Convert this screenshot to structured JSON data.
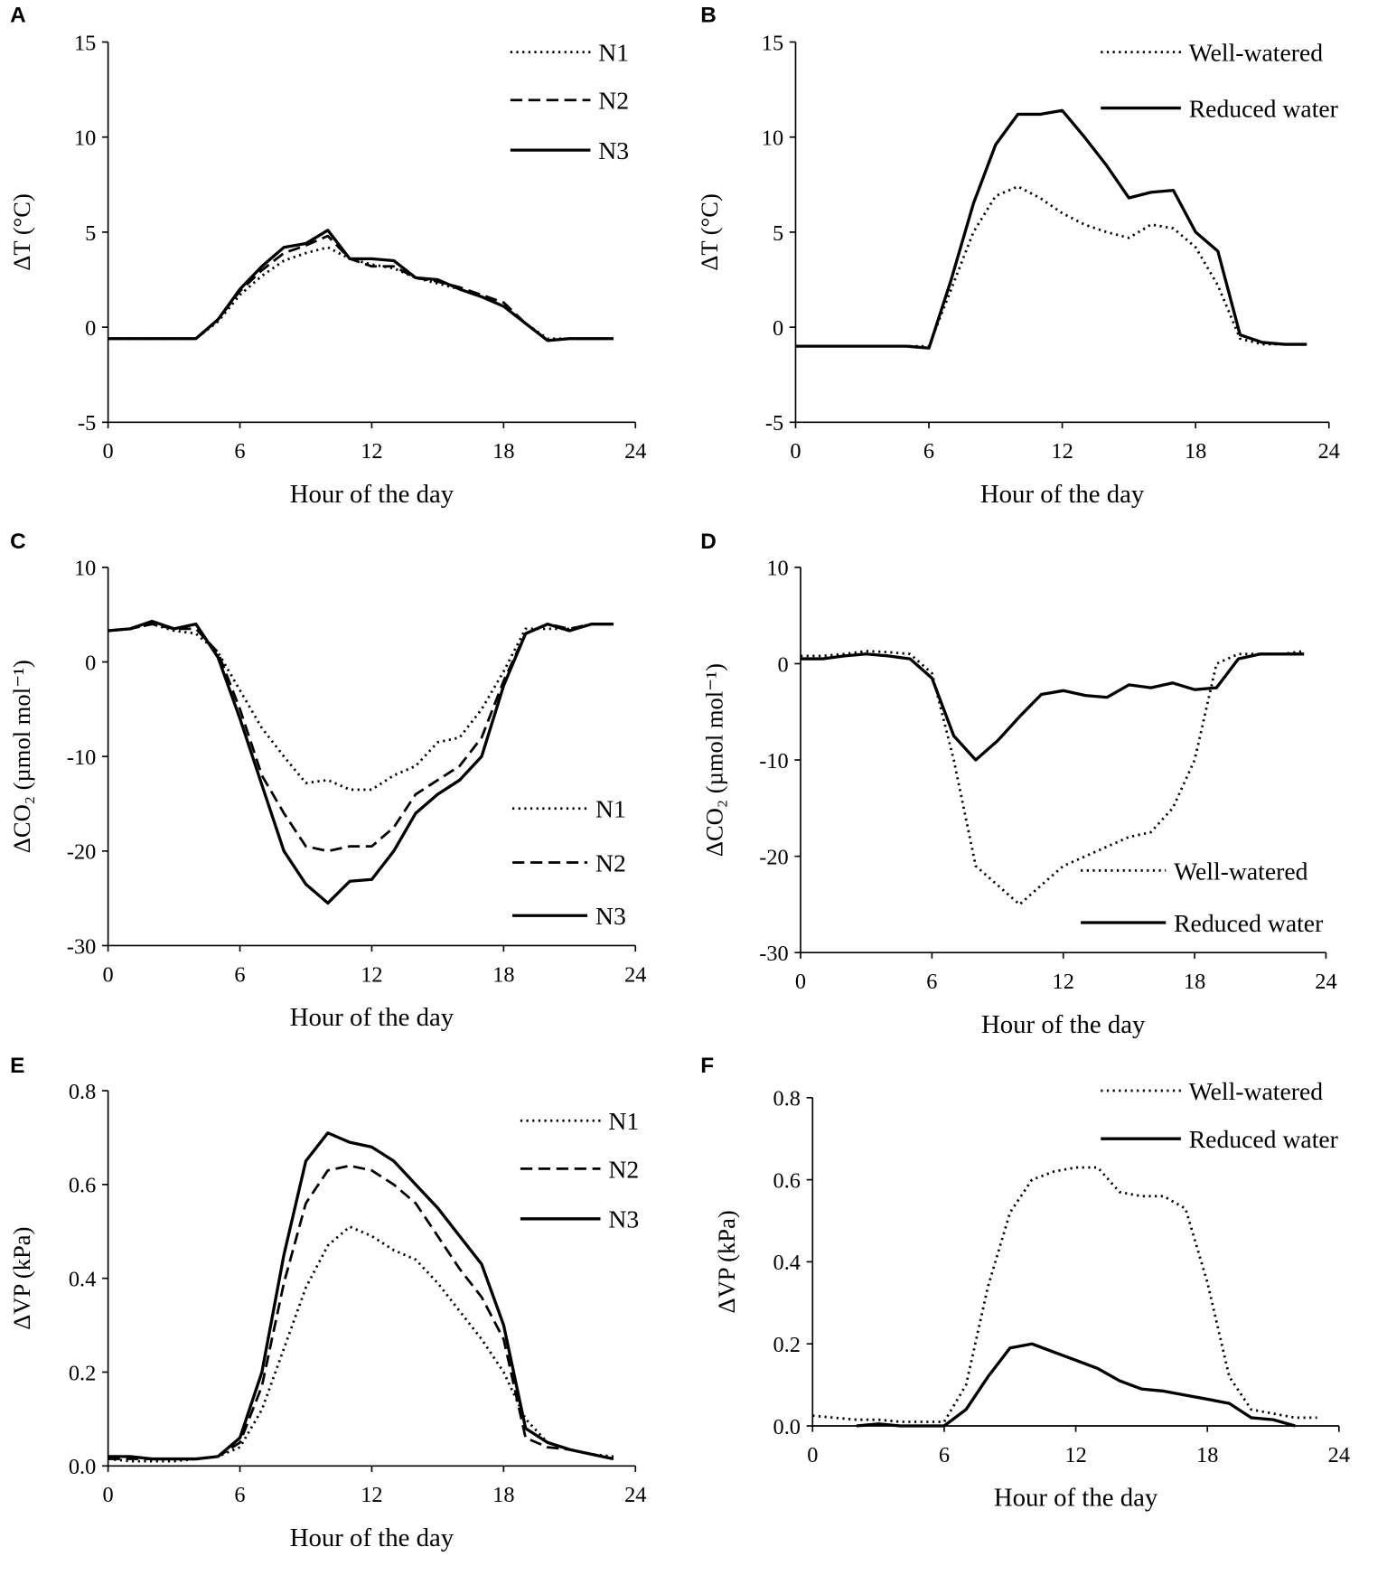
{
  "chart_data": [
    {
      "panel": "A",
      "type": "line",
      "xlabel": "Hour of the day",
      "ylabel": "ΔT (°C)",
      "xlim": [
        0,
        24
      ],
      "ylim": [
        -5,
        15
      ],
      "xticks": [
        "0",
        "6",
        "12",
        "18",
        "24"
      ],
      "yticks": [
        "-5",
        "0",
        "5",
        "10",
        "15"
      ],
      "legend_position": "top-right",
      "x": [
        0,
        1,
        2,
        3,
        4,
        5,
        6,
        7,
        8,
        9,
        10,
        11,
        12,
        13,
        14,
        15,
        16,
        17,
        18,
        19,
        20,
        21,
        22,
        23
      ],
      "series": [
        {
          "name": "N1",
          "style": "dotted",
          "values": [
            -0.6,
            -0.6,
            -0.6,
            -0.6,
            -0.6,
            0.3,
            1.7,
            2.7,
            3.5,
            3.9,
            4.2,
            3.6,
            3.3,
            3.1,
            2.6,
            2.3,
            2.0,
            1.6,
            1.1,
            0.2,
            -0.6,
            -0.6,
            -0.6,
            -0.6
          ]
        },
        {
          "name": "N2",
          "style": "dashed",
          "values": [
            -0.6,
            -0.6,
            -0.6,
            -0.6,
            -0.6,
            0.4,
            1.9,
            3.0,
            3.9,
            4.3,
            4.8,
            3.6,
            3.2,
            3.2,
            2.6,
            2.4,
            2.1,
            1.7,
            1.3,
            0.2,
            -0.7,
            -0.6,
            -0.6,
            -0.6
          ]
        },
        {
          "name": "N3",
          "style": "solid",
          "values": [
            -0.6,
            -0.6,
            -0.6,
            -0.6,
            -0.6,
            0.4,
            2.0,
            3.2,
            4.2,
            4.4,
            5.1,
            3.6,
            3.6,
            3.5,
            2.6,
            2.5,
            2.0,
            1.6,
            1.1,
            0.2,
            -0.7,
            -0.6,
            -0.6,
            -0.6
          ]
        }
      ]
    },
    {
      "panel": "B",
      "type": "line",
      "xlabel": "Hour of the day",
      "ylabel": "ΔT (°C)",
      "xlim": [
        0,
        24
      ],
      "ylim": [
        -5,
        15
      ],
      "xticks": [
        "0",
        "6",
        "12",
        "18",
        "24"
      ],
      "yticks": [
        "-5",
        "0",
        "5",
        "10",
        "15"
      ],
      "legend_position": "top-right",
      "x": [
        0,
        1,
        2,
        3,
        4,
        5,
        6,
        7,
        8,
        9,
        10,
        11,
        12,
        13,
        14,
        15,
        16,
        17,
        18,
        19,
        20,
        21,
        22,
        23
      ],
      "series": [
        {
          "name": "Well-watered",
          "style": "dotted",
          "values": [
            -1,
            -1,
            -1,
            -1,
            -1,
            -1,
            -1,
            2,
            5,
            6.9,
            7.4,
            6.8,
            6,
            5.4,
            5,
            4.7,
            5.4,
            5.2,
            4.2,
            2.2,
            -0.6,
            -0.9,
            -0.9,
            -0.9
          ]
        },
        {
          "name": "Reduced water",
          "style": "solid",
          "values": [
            -1,
            -1,
            -1,
            -1,
            -1,
            -1,
            -1.1,
            2.5,
            6.5,
            9.6,
            11.2,
            11.2,
            11.4,
            10,
            8.5,
            6.8,
            7.1,
            7.2,
            5,
            4,
            -0.4,
            -0.8,
            -0.9,
            -0.9
          ]
        }
      ]
    },
    {
      "panel": "C",
      "type": "line",
      "xlabel": "Hour of the day",
      "ylabel": "ΔCO₂ (µmol mol⁻¹)",
      "xlim": [
        0,
        24
      ],
      "ylim": [
        -30,
        10
      ],
      "xticks": [
        "0",
        "6",
        "12",
        "18",
        "24"
      ],
      "yticks": [
        "-30",
        "-20",
        "-10",
        "0",
        "10"
      ],
      "legend_position": "bottom-right",
      "x": [
        0,
        1,
        2,
        3,
        4,
        5,
        6,
        7,
        8,
        9,
        10,
        11,
        12,
        13,
        14,
        15,
        16,
        17,
        18,
        19,
        20,
        21,
        22,
        23
      ],
      "series": [
        {
          "name": "N1",
          "style": "dotted",
          "values": [
            3.3,
            3.5,
            4,
            3.3,
            3,
            1,
            -3,
            -7,
            -10,
            -12.8,
            -12.5,
            -13.5,
            -13.5,
            -12,
            -11,
            -8.5,
            -8,
            -5,
            -1,
            3.5,
            3.5,
            3.5,
            4,
            4
          ]
        },
        {
          "name": "N2",
          "style": "dashed",
          "values": [
            3.3,
            3.5,
            4,
            3.5,
            3.5,
            1,
            -5,
            -12,
            -16,
            -19.5,
            -20,
            -19.5,
            -19.5,
            -17.5,
            -14,
            -12.5,
            -11,
            -8,
            -2,
            3,
            4,
            3.5,
            4,
            4
          ]
        },
        {
          "name": "N3",
          "style": "solid",
          "values": [
            3.3,
            3.5,
            4.3,
            3.5,
            4,
            0.5,
            -6,
            -13,
            -20,
            -23.5,
            -25.5,
            -23.2,
            -23,
            -20,
            -16,
            -14,
            -12.5,
            -10,
            -2.5,
            3,
            4,
            3.3,
            4,
            4
          ]
        }
      ]
    },
    {
      "panel": "D",
      "type": "line",
      "xlabel": "Hour of the day",
      "ylabel": "ΔCO₂ (µmol mol⁻¹)",
      "xlim": [
        0,
        24
      ],
      "ylim": [
        -30,
        10
      ],
      "xticks": [
        "0",
        "6",
        "12",
        "18",
        "24"
      ],
      "yticks": [
        "-30",
        "-20",
        "-10",
        "0",
        "10"
      ],
      "legend_position": "bottom-right",
      "x": [
        0,
        1,
        2,
        3,
        4,
        5,
        6,
        7,
        8,
        9,
        10,
        11,
        12,
        13,
        14,
        15,
        16,
        17,
        18,
        19,
        20,
        21,
        22,
        23
      ],
      "series": [
        {
          "name": "Well-watered",
          "style": "dotted",
          "values": [
            0.8,
            0.8,
            1,
            1.3,
            1.2,
            1,
            -1,
            -10,
            -21,
            -23,
            -25,
            -23,
            -21,
            -20,
            -19,
            -18,
            -17.5,
            -15,
            -10,
            0,
            1,
            1,
            1,
            1.3
          ]
        },
        {
          "name": "Reduced water",
          "style": "solid",
          "values": [
            0.5,
            0.5,
            0.8,
            1,
            0.8,
            0.5,
            -1.5,
            -7.5,
            -10,
            -8,
            -5.5,
            -3.2,
            -2.8,
            -3.3,
            -3.5,
            -2.2,
            -2.5,
            -2,
            -2.7,
            -2.5,
            0.5,
            1,
            1,
            1
          ]
        }
      ]
    },
    {
      "panel": "E",
      "type": "line",
      "xlabel": "Hour of the day",
      "ylabel": "ΔVP (kPa)",
      "xlim": [
        0,
        24
      ],
      "ylim": [
        0,
        0.8
      ],
      "xticks": [
        "0",
        "6",
        "12",
        "18",
        "24"
      ],
      "yticks": [
        "0.0",
        "0.2",
        "0.4",
        "0.6",
        "0.8"
      ],
      "legend_position": "top-right",
      "x": [
        0,
        1,
        2,
        3,
        4,
        5,
        6,
        7,
        8,
        9,
        10,
        11,
        12,
        13,
        14,
        15,
        16,
        17,
        18,
        19,
        20,
        21,
        22,
        23
      ],
      "series": [
        {
          "name": "N1",
          "style": "dotted",
          "values": [
            0.015,
            0.01,
            0.01,
            0.01,
            0.015,
            0.02,
            0.04,
            0.12,
            0.25,
            0.38,
            0.47,
            0.51,
            0.49,
            0.46,
            0.44,
            0.39,
            0.33,
            0.27,
            0.2,
            0.1,
            0.05,
            0.035,
            0.025,
            0.02
          ]
        },
        {
          "name": "N2",
          "style": "dashed",
          "values": [
            0.015,
            0.015,
            0.015,
            0.015,
            0.015,
            0.02,
            0.05,
            0.17,
            0.39,
            0.56,
            0.63,
            0.64,
            0.63,
            0.6,
            0.56,
            0.49,
            0.42,
            0.36,
            0.27,
            0.06,
            0.04,
            0.035,
            0.025,
            0.015
          ]
        },
        {
          "name": "N3",
          "style": "solid",
          "values": [
            0.02,
            0.02,
            0.015,
            0.015,
            0.015,
            0.02,
            0.06,
            0.2,
            0.45,
            0.65,
            0.71,
            0.69,
            0.68,
            0.65,
            0.6,
            0.55,
            0.49,
            0.43,
            0.3,
            0.08,
            0.05,
            0.035,
            0.025,
            0.015
          ]
        }
      ]
    },
    {
      "panel": "F",
      "type": "line",
      "xlabel": "Hour of the day",
      "ylabel": "ΔVP (kPa)",
      "xlim": [
        0,
        24
      ],
      "ylim": [
        0,
        0.8
      ],
      "xticks": [
        "0",
        "6",
        "12",
        "18",
        "24"
      ],
      "yticks": [
        "0.0",
        "0.2",
        "0.4",
        "0.6",
        "0.8"
      ],
      "legend_position": "top-right",
      "x": [
        0,
        1,
        2,
        3,
        4,
        5,
        6,
        7,
        8,
        9,
        10,
        11,
        12,
        13,
        14,
        15,
        16,
        17,
        18,
        19,
        20,
        21,
        22,
        23
      ],
      "series": [
        {
          "name": "Well-watered",
          "style": "dotted",
          "values": [
            0.025,
            0.02,
            0.015,
            0.015,
            0.01,
            0.01,
            0.01,
            0.1,
            0.34,
            0.52,
            0.6,
            0.62,
            0.63,
            0.63,
            0.57,
            0.56,
            0.56,
            0.53,
            0.35,
            0.12,
            0.04,
            0.03,
            0.02,
            0.02
          ]
        },
        {
          "name": "Reduced water",
          "style": "solid",
          "values": [
            null,
            null,
            0,
            0.005,
            0,
            0,
            0,
            0.04,
            0.12,
            0.19,
            0.2,
            0.18,
            0.16,
            0.14,
            0.11,
            0.09,
            0.085,
            0.075,
            0.065,
            0.055,
            0.02,
            0.015,
            0,
            null
          ]
        }
      ]
    }
  ]
}
